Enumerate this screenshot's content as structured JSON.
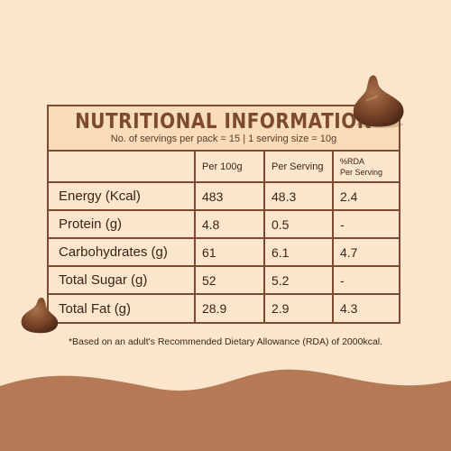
{
  "header": {
    "title": "NUTRITIONAL INFORMATION",
    "subtitle": "No. of servings per pack = 15 | 1 serving size = 10g"
  },
  "table": {
    "columns": [
      "",
      "Per 100g",
      "Per Serving",
      "%RDA\nPer Serving"
    ],
    "rows": [
      {
        "label": "Energy (Kcal)",
        "per100": "483",
        "perServing": "48.3",
        "rda": "2.4"
      },
      {
        "label": "Protein (g)",
        "per100": "4.8",
        "perServing": "0.5",
        "rda": "-"
      },
      {
        "label": "Carbohydrates (g)",
        "per100": "61",
        "perServing": "6.1",
        "rda": "4.7"
      },
      {
        "label": "Total Sugar (g)",
        "per100": "52",
        "perServing": "5.2",
        "rda": "-"
      },
      {
        "label": "Total Fat (g)",
        "per100": "28.9",
        "perServing": "2.9",
        "rda": "4.3"
      }
    ]
  },
  "footnote": "*Based on an adult's Recommended Dietary Allowance (RDA) of 2000kcal.",
  "colors": {
    "background": "#fbe6cc",
    "border": "#7b4a2f",
    "wave": "#b57a55",
    "chocolate": "#6e3f24"
  },
  "icons": [
    "chocolate-chip-icon"
  ]
}
